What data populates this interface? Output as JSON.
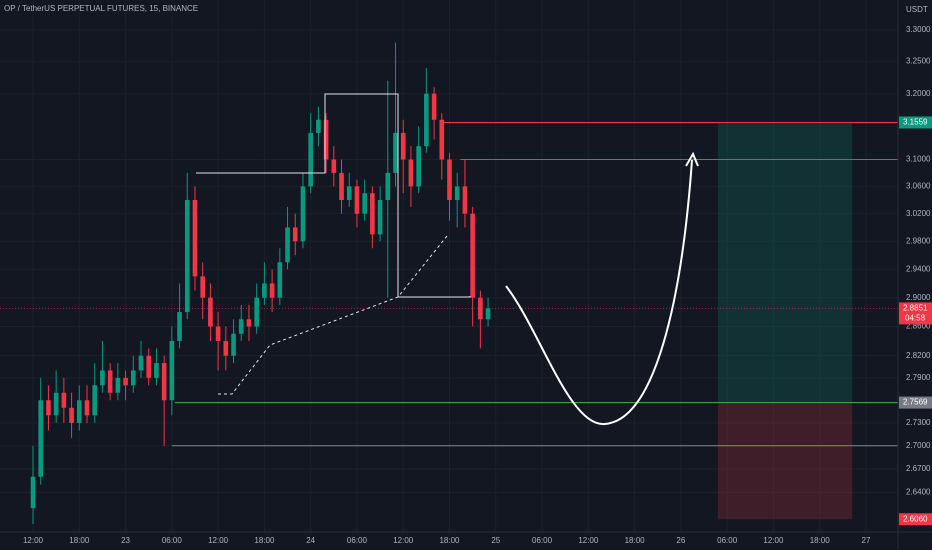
{
  "chart_data": {
    "type": "candlestick",
    "title": "OP / TetherUS PERPETUAL FUTURES, 15, BINANCE",
    "y_unit": "USDT",
    "log": true,
    "grid": true,
    "grid_color": "#1c202b",
    "up_color": "#089981",
    "down_color": "#f23645",
    "ylim": [
      2.59,
      3.348
    ],
    "xlim": [
      -4.28,
      112.15
    ],
    "yticks": [
      {
        "value": 3.3,
        "label": "3.3000"
      },
      {
        "value": 3.25,
        "label": "3.2500"
      },
      {
        "value": 3.2,
        "label": "3.2000"
      },
      {
        "value": 3.1,
        "label": "3.1000"
      },
      {
        "value": 3.06,
        "label": "3.0600"
      },
      {
        "value": 3.02,
        "label": "3.0200"
      },
      {
        "value": 2.98,
        "label": "2.9800"
      },
      {
        "value": 2.94,
        "label": "2.9400"
      },
      {
        "value": 2.9,
        "label": "2.9000"
      },
      {
        "value": 2.86,
        "label": "2.8600"
      },
      {
        "value": 2.82,
        "label": "2.8200"
      },
      {
        "value": 2.79,
        "label": "2.7900"
      },
      {
        "value": 2.73,
        "label": "2.7300"
      },
      {
        "value": 2.7,
        "label": "2.7000"
      },
      {
        "value": 2.67,
        "label": "2.6700"
      },
      {
        "value": 2.64,
        "label": "2.6400"
      }
    ],
    "xticks": [
      {
        "value": 0,
        "label": "12:00"
      },
      {
        "value": 6,
        "label": "18:00"
      },
      {
        "value": 12,
        "label": "23"
      },
      {
        "value": 18,
        "label": "06:00"
      },
      {
        "value": 24,
        "label": "12:00"
      },
      {
        "value": 30,
        "label": "18:00"
      },
      {
        "value": 36,
        "label": "24"
      },
      {
        "value": 42,
        "label": "06:00"
      },
      {
        "value": 48,
        "label": "12:00"
      },
      {
        "value": 54,
        "label": "18:00"
      },
      {
        "value": 60,
        "label": "25"
      },
      {
        "value": 66,
        "label": "06:00"
      },
      {
        "value": 72,
        "label": "12:00"
      },
      {
        "value": 78,
        "label": "18:00"
      },
      {
        "value": 84,
        "label": "26"
      },
      {
        "value": 90,
        "label": "06:00"
      },
      {
        "value": 96,
        "label": "12:00"
      },
      {
        "value": 102,
        "label": "18:00"
      },
      {
        "value": 108,
        "label": "27"
      }
    ],
    "open": [
      2.62,
      2.66,
      2.76,
      2.74,
      2.77,
      2.75,
      2.73,
      2.76,
      2.74,
      2.78,
      2.8,
      2.77,
      2.79,
      2.78,
      2.8,
      2.82,
      2.79,
      2.81,
      2.76,
      2.84,
      2.88,
      3.04,
      2.93,
      2.9,
      2.86,
      2.84,
      2.82,
      2.85,
      2.87,
      2.86,
      2.9,
      2.92,
      2.9,
      2.95,
      3.0,
      2.98,
      3.06,
      3.14,
      3.16,
      3.1,
      3.08,
      3.04,
      3.06,
      3.02,
      3.05,
      2.99,
      3.04,
      3.08,
      3.14,
      3.1,
      3.06,
      3.12,
      3.2,
      3.16,
      3.1,
      3.04,
      3.06,
      3.02,
      2.9,
      2.87
    ],
    "high": [
      2.7,
      2.79,
      2.78,
      2.8,
      2.79,
      2.77,
      2.78,
      2.78,
      2.81,
      2.84,
      2.81,
      2.81,
      2.8,
      2.82,
      2.84,
      2.83,
      2.83,
      2.82,
      2.86,
      2.92,
      3.08,
      3.06,
      2.95,
      2.92,
      2.88,
      2.86,
      2.87,
      2.89,
      2.89,
      2.92,
      2.95,
      2.94,
      2.97,
      3.03,
      3.02,
      3.08,
      3.17,
      3.18,
      3.17,
      3.12,
      3.1,
      3.08,
      3.07,
      3.07,
      3.06,
      3.06,
      3.22,
      3.28,
      3.16,
      3.12,
      3.15,
      3.24,
      3.21,
      3.17,
      3.11,
      3.08,
      3.1,
      3.03,
      2.91,
      2.9
    ],
    "low": [
      2.6,
      2.65,
      2.72,
      2.73,
      2.73,
      2.71,
      2.72,
      2.73,
      2.73,
      2.77,
      2.76,
      2.76,
      2.76,
      2.77,
      2.79,
      2.78,
      2.78,
      2.7,
      2.74,
      2.83,
      2.87,
      2.91,
      2.87,
      2.84,
      2.8,
      2.8,
      2.81,
      2.84,
      2.84,
      2.85,
      2.89,
      2.88,
      2.89,
      2.94,
      2.96,
      2.97,
      3.05,
      3.12,
      3.08,
      3.06,
      3.02,
      3.03,
      3.0,
      3.01,
      2.97,
      2.98,
      2.9,
      3.06,
      3.05,
      3.03,
      3.05,
      3.11,
      3.13,
      3.07,
      3.01,
      3.0,
      3.0,
      2.86,
      2.83,
      2.86
    ],
    "close": [
      2.66,
      2.76,
      2.74,
      2.77,
      2.75,
      2.73,
      2.76,
      2.74,
      2.78,
      2.8,
      2.77,
      2.79,
      2.78,
      2.8,
      2.82,
      2.79,
      2.81,
      2.76,
      2.84,
      2.88,
      3.04,
      2.93,
      2.9,
      2.86,
      2.84,
      2.82,
      2.85,
      2.87,
      2.86,
      2.9,
      2.92,
      2.9,
      2.95,
      3.0,
      2.98,
      3.06,
      3.14,
      3.16,
      3.1,
      3.08,
      3.04,
      3.06,
      3.02,
      3.05,
      2.99,
      3.04,
      3.08,
      3.14,
      3.1,
      3.06,
      3.12,
      3.2,
      3.16,
      3.1,
      3.04,
      3.06,
      3.02,
      2.9,
      2.87,
      2.8851
    ],
    "horizontal_lines": [
      {
        "value": 3.1559,
        "start": 52.8,
        "color": "#f23645"
      },
      {
        "value": 3.1,
        "start": 55.4,
        "color": "#f23645"
      },
      {
        "value": 2.7569,
        "start": 18.4,
        "color": "#4caf50"
      },
      {
        "value": 2.7,
        "start": 18.0,
        "color": "#4caf50"
      }
    ],
    "position": {
      "x_range": [
        88.8,
        106.2
      ],
      "target": 3.1559,
      "target_label": "3.1559",
      "target_color": "#089981",
      "entry": 2.7569,
      "entry_label": "2.7569",
      "entry_color": "#787b86",
      "stop": 2.606,
      "stop_label": "2.6060",
      "stop_color": "#f23645"
    },
    "last_price": {
      "value": 2.8851,
      "label": "2.8851",
      "countdown": "04:58",
      "color": "#f23645"
    }
  }
}
